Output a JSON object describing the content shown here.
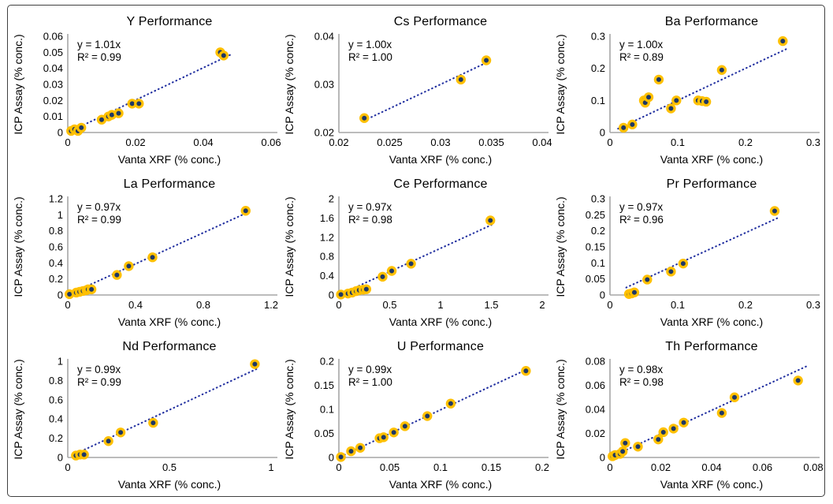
{
  "figure": {
    "description": "Grid of nine XRF vs ICP assay correlation scatter plots",
    "colors": {
      "point_fill": "#1f3864",
      "point_ring": "#ffc000",
      "trendline": "#2230a0",
      "axis_line": "#a6a6a6",
      "text": "#000000",
      "frame_border": "#404040",
      "background": "#ffffff"
    }
  },
  "chart_data": [
    {
      "type": "scatter",
      "title": "Y Performance",
      "equation": "y = 1.01x",
      "r2": "R² = 0.99",
      "xlabel": "Vanta XRF (% conc.)",
      "ylabel": "ICP Assay (% conc.)",
      "xlim": [
        0,
        0.06
      ],
      "ylim": [
        0,
        0.06
      ],
      "xticks": [
        0,
        0.02,
        0.04,
        0.06
      ],
      "xtick_labels": [
        "0",
        "0.02",
        "0.04",
        "0.06"
      ],
      "yticks": [
        0,
        0.01,
        0.02,
        0.03,
        0.04,
        0.05,
        0.06
      ],
      "ytick_labels": [
        "0",
        "0.01",
        "0.02",
        "0.03",
        "0.04",
        "0.05",
        "0.06"
      ],
      "slope": 1.01,
      "trend_x": [
        0.0005,
        0.0485
      ],
      "points": [
        [
          0.001,
          0.001
        ],
        [
          0.002,
          0.002
        ],
        [
          0.003,
          0.001
        ],
        [
          0.004,
          0.003
        ],
        [
          0.01,
          0.008
        ],
        [
          0.012,
          0.01
        ],
        [
          0.013,
          0.011
        ],
        [
          0.015,
          0.012
        ],
        [
          0.019,
          0.018
        ],
        [
          0.021,
          0.018
        ],
        [
          0.045,
          0.05
        ],
        [
          0.046,
          0.048
        ]
      ]
    },
    {
      "type": "scatter",
      "title": "Cs Performance",
      "equation": "y = 1.00x",
      "r2": "R² = 1.00",
      "xlabel": "Vanta XRF (% conc.)",
      "ylabel": "ICP Assay (% conc.)",
      "xlim": [
        0.02,
        0.04
      ],
      "ylim": [
        0.02,
        0.04
      ],
      "xticks": [
        0.02,
        0.025,
        0.03,
        0.035,
        0.04
      ],
      "xtick_labels": [
        "0.02",
        "0.025",
        "0.03",
        "0.035",
        "0.04"
      ],
      "yticks": [
        0.02,
        0.03,
        0.04
      ],
      "ytick_labels": [
        "0.02",
        "0.03",
        "0.04"
      ],
      "slope": 1.0,
      "trend_x": [
        0.0232,
        0.0348
      ],
      "points": [
        [
          0.0225,
          0.023
        ],
        [
          0.032,
          0.031
        ],
        [
          0.0345,
          0.035
        ]
      ]
    },
    {
      "type": "scatter",
      "title": "Ba Performance",
      "equation": "y = 1.00x",
      "r2": "R² = 0.89",
      "xlabel": "Vanta XRF (% conc.)",
      "ylabel": "ICP Assay (% conc.)",
      "xlim": [
        0,
        0.3
      ],
      "ylim": [
        0,
        0.3
      ],
      "xticks": [
        0,
        0.1,
        0.2,
        0.3
      ],
      "xtick_labels": [
        "0",
        "0.1",
        "0.2",
        "0.3"
      ],
      "yticks": [
        0,
        0.1,
        0.2,
        0.3
      ],
      "ytick_labels": [
        "0",
        "0.1",
        "0.2",
        "0.3"
      ],
      "slope": 1.0,
      "trend_x": [
        0.012,
        0.262
      ],
      "points": [
        [
          0.02,
          0.015
        ],
        [
          0.033,
          0.025
        ],
        [
          0.05,
          0.1
        ],
        [
          0.052,
          0.093
        ],
        [
          0.057,
          0.11
        ],
        [
          0.072,
          0.165
        ],
        [
          0.09,
          0.075
        ],
        [
          0.098,
          0.1
        ],
        [
          0.13,
          0.1
        ],
        [
          0.136,
          0.098
        ],
        [
          0.142,
          0.096
        ],
        [
          0.165,
          0.195
        ],
        [
          0.255,
          0.285
        ]
      ]
    },
    {
      "type": "scatter",
      "title": "La Performance",
      "equation": "y = 0.97x",
      "r2": "R² = 0.99",
      "xlabel": "Vanta XRF (% conc.)",
      "ylabel": "ICP Assay (% conc.)",
      "xlim": [
        0,
        1.2
      ],
      "ylim": [
        0,
        1.2
      ],
      "xticks": [
        0,
        0.4,
        0.8,
        1.2
      ],
      "xtick_labels": [
        "0",
        "0.4",
        "0.8",
        "1.2"
      ],
      "yticks": [
        0,
        0.2,
        0.4,
        0.6,
        0.8,
        1,
        1.2
      ],
      "ytick_labels": [
        "0",
        "0.2",
        "0.4",
        "0.6",
        "0.8",
        "1",
        "1.2"
      ],
      "slope": 0.97,
      "trend_x": [
        0.01,
        1.06
      ],
      "points": [
        [
          0.01,
          0.01
        ],
        [
          0.05,
          0.03
        ],
        [
          0.07,
          0.04
        ],
        [
          0.09,
          0.05
        ],
        [
          0.11,
          0.06
        ],
        [
          0.12,
          0.07
        ],
        [
          0.14,
          0.07
        ],
        [
          0.29,
          0.25
        ],
        [
          0.36,
          0.36
        ],
        [
          0.5,
          0.47
        ],
        [
          1.05,
          1.05
        ]
      ]
    },
    {
      "type": "scatter",
      "title": "Ce Performance",
      "equation": "y = 0.97x",
      "r2": "R² = 0.98",
      "xlabel": "Vanta XRF (% conc.)",
      "ylabel": "ICP Assay (% conc.)",
      "xlim": [
        0,
        2
      ],
      "ylim": [
        0,
        2
      ],
      "xticks": [
        0,
        0.5,
        1,
        1.5,
        2
      ],
      "xtick_labels": [
        "0",
        "0.5",
        "1",
        "1.5",
        "2"
      ],
      "yticks": [
        0,
        0.4,
        0.8,
        1.2,
        1.6,
        2
      ],
      "ytick_labels": [
        "0",
        "0.4",
        "0.8",
        "1.2",
        "1.6",
        "2"
      ],
      "slope": 0.97,
      "trend_x": [
        0.02,
        1.5
      ],
      "points": [
        [
          0.02,
          0.01
        ],
        [
          0.09,
          0.03
        ],
        [
          0.13,
          0.05
        ],
        [
          0.17,
          0.08
        ],
        [
          0.2,
          0.1
        ],
        [
          0.24,
          0.11
        ],
        [
          0.27,
          0.12
        ],
        [
          0.43,
          0.38
        ],
        [
          0.52,
          0.5
        ],
        [
          0.71,
          0.65
        ],
        [
          1.49,
          1.55
        ]
      ]
    },
    {
      "type": "scatter",
      "title": "Pr Performance",
      "equation": "y = 0.97x",
      "r2": "R² = 0.96",
      "xlabel": "Vanta XRF (% conc.)",
      "ylabel": "ICP Assay (% conc.)",
      "xlim": [
        0,
        0.3
      ],
      "ylim": [
        0,
        0.3
      ],
      "xticks": [
        0,
        0.1,
        0.2,
        0.3
      ],
      "xtick_labels": [
        "0",
        "0.1",
        "0.2",
        "0.3"
      ],
      "yticks": [
        0,
        0.05,
        0.1,
        0.15,
        0.2,
        0.25,
        0.3
      ],
      "ytick_labels": [
        "0",
        "0.05",
        "0.1",
        "0.15",
        "0.2",
        "0.25",
        "0.3"
      ],
      "slope": 0.97,
      "trend_x": [
        0.024,
        0.251
      ],
      "points": [
        [
          0.028,
          0.003
        ],
        [
          0.032,
          0.005
        ],
        [
          0.036,
          0.008
        ],
        [
          0.055,
          0.048
        ],
        [
          0.09,
          0.073
        ],
        [
          0.108,
          0.098
        ],
        [
          0.243,
          0.262
        ]
      ]
    },
    {
      "type": "scatter",
      "title": "Nd Performance",
      "equation": "y = 0.99x",
      "r2": "R² = 0.99",
      "xlabel": "Vanta XRF (% conc.)",
      "ylabel": "ICP Assay (% conc.)",
      "xlim": [
        0,
        1
      ],
      "ylim": [
        0,
        1
      ],
      "xticks": [
        0,
        0.5,
        1
      ],
      "xtick_labels": [
        "0",
        "0.5",
        "1"
      ],
      "yticks": [
        0,
        0.2,
        0.4,
        0.6,
        0.8,
        1
      ],
      "ytick_labels": [
        "0",
        "0.2",
        "0.4",
        "0.6",
        "0.8",
        "1"
      ],
      "slope": 0.99,
      "trend_x": [
        0.03,
        0.93
      ],
      "points": [
        [
          0.04,
          0.02
        ],
        [
          0.06,
          0.03
        ],
        [
          0.08,
          0.03
        ],
        [
          0.2,
          0.17
        ],
        [
          0.26,
          0.26
        ],
        [
          0.42,
          0.36
        ],
        [
          0.92,
          0.97
        ]
      ]
    },
    {
      "type": "scatter",
      "title": "U Performance",
      "equation": "y = 0.99x",
      "r2": "R² = 1.00",
      "xlabel": "Vanta XRF (% conc.)",
      "ylabel": "ICP Assay (% conc.)",
      "xlim": [
        0,
        0.2
      ],
      "ylim": [
        0,
        0.2
      ],
      "xticks": [
        0,
        0.05,
        0.1,
        0.15,
        0.2
      ],
      "xtick_labels": [
        "0",
        "0.05",
        "0.1",
        "0.15",
        "0.2"
      ],
      "yticks": [
        0,
        0.05,
        0.1,
        0.15,
        0.2
      ],
      "ytick_labels": [
        "0",
        "0.05",
        "0.1",
        "0.15",
        "0.2"
      ],
      "slope": 0.99,
      "trend_x": [
        0.002,
        0.186
      ],
      "points": [
        [
          0.002,
          0.001
        ],
        [
          0.012,
          0.013
        ],
        [
          0.021,
          0.02
        ],
        [
          0.04,
          0.04
        ],
        [
          0.044,
          0.042
        ],
        [
          0.054,
          0.052
        ],
        [
          0.065,
          0.065
        ],
        [
          0.087,
          0.086
        ],
        [
          0.11,
          0.112
        ],
        [
          0.184,
          0.18
        ]
      ]
    },
    {
      "type": "scatter",
      "title": "Th Performance",
      "equation": "y = 0.98x",
      "r2": "R² = 0.98",
      "xlabel": "Vanta XRF (% conc.)",
      "ylabel": "ICP Assay (% conc.)",
      "xlim": [
        0,
        0.08
      ],
      "ylim": [
        0,
        0.08
      ],
      "xticks": [
        0,
        0.02,
        0.04,
        0.06,
        0.08
      ],
      "xtick_labels": [
        "0",
        "0.02",
        "0.04",
        "0.06",
        "0.08"
      ],
      "yticks": [
        0,
        0.02,
        0.04,
        0.06,
        0.08
      ],
      "ytick_labels": [
        "0",
        "0.02",
        "0.04",
        "0.06",
        "0.08"
      ],
      "slope": 0.98,
      "trend_x": [
        0.001,
        0.078
      ],
      "points": [
        [
          0.001,
          0.001
        ],
        [
          0.002,
          0.002
        ],
        [
          0.004,
          0.003
        ],
        [
          0.005,
          0.005
        ],
        [
          0.006,
          0.012
        ],
        [
          0.011,
          0.009
        ],
        [
          0.019,
          0.015
        ],
        [
          0.021,
          0.021
        ],
        [
          0.025,
          0.024
        ],
        [
          0.029,
          0.029
        ],
        [
          0.044,
          0.037
        ],
        [
          0.049,
          0.05
        ],
        [
          0.074,
          0.064
        ]
      ]
    }
  ]
}
